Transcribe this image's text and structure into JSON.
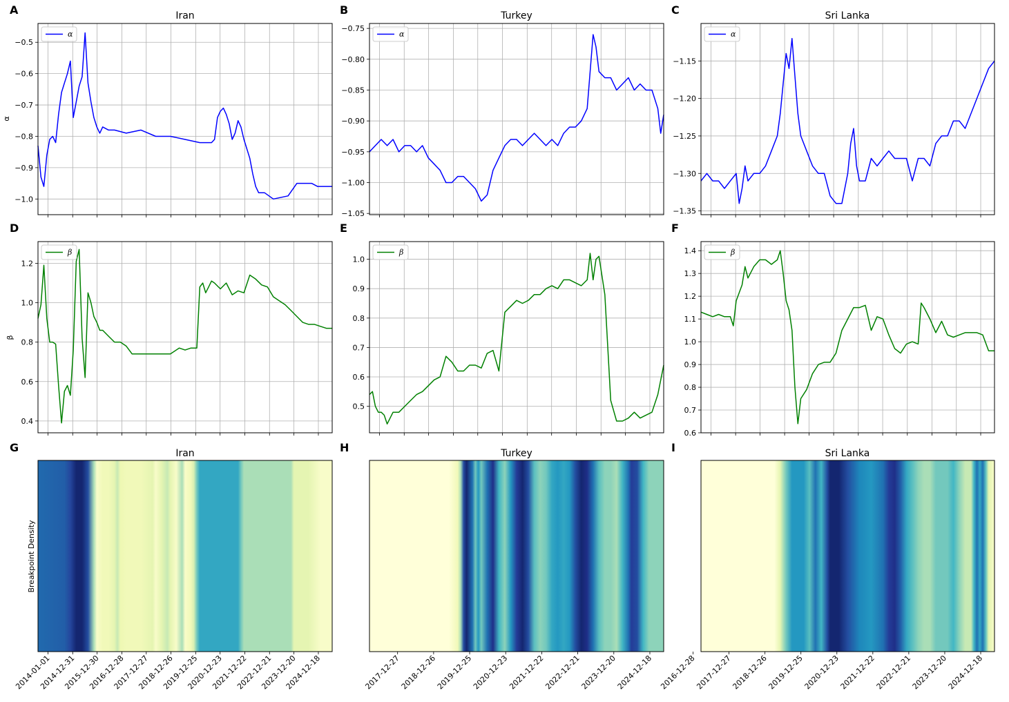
{
  "colors": {
    "alpha": "#0000ff",
    "beta": "#008000",
    "grid": "#b0b0b0",
    "heat": [
      "#ffffd9",
      "#edf8b1",
      "#c7e9b4",
      "#7fcdbb",
      "#41b6c4",
      "#1d91c0",
      "#225ea8",
      "#253494",
      "#081d58"
    ]
  },
  "chart_data": [
    {
      "panel": "A",
      "type": "line",
      "title": "Iran",
      "series_name": "α",
      "ylabel": "α",
      "ylim": [
        -1.05,
        -0.44
      ],
      "yticks": [
        -0.5,
        -0.6,
        -0.7,
        -0.8,
        -0.9,
        -1.0
      ],
      "ytick_labels": [
        "−0.5",
        "−0.6",
        "−0.7",
        "−0.8",
        "−0.9",
        "−1.0"
      ],
      "xlim": [
        0,
        100
      ],
      "x": [
        0,
        1,
        2,
        3,
        4,
        5,
        6,
        7,
        8,
        9,
        10,
        11,
        12,
        13,
        14,
        15,
        16,
        17,
        18,
        19,
        20,
        21,
        22,
        24,
        26,
        30,
        35,
        40,
        45,
        50,
        55,
        58,
        59,
        60,
        61,
        62,
        63,
        64,
        65,
        66,
        67,
        68,
        69,
        70,
        72,
        73,
        74,
        75,
        77,
        80,
        85,
        88,
        90,
        93,
        95,
        100
      ],
      "values": [
        -0.83,
        -0.93,
        -0.96,
        -0.86,
        -0.81,
        -0.8,
        -0.82,
        -0.73,
        -0.66,
        -0.63,
        -0.6,
        -0.56,
        -0.74,
        -0.69,
        -0.64,
        -0.61,
        -0.47,
        -0.63,
        -0.69,
        -0.74,
        -0.77,
        -0.79,
        -0.77,
        -0.78,
        -0.78,
        -0.79,
        -0.78,
        -0.8,
        -0.8,
        -0.81,
        -0.82,
        -0.82,
        -0.82,
        -0.81,
        -0.74,
        -0.72,
        -0.71,
        -0.73,
        -0.76,
        -0.81,
        -0.79,
        -0.75,
        -0.77,
        -0.81,
        -0.87,
        -0.92,
        -0.96,
        -0.98,
        -0.98,
        -1.0,
        -0.99,
        -0.95,
        -0.95,
        -0.95,
        -0.96,
        -0.96
      ]
    },
    {
      "panel": "B",
      "type": "line",
      "title": "Turkey",
      "series_name": "α",
      "ylabel": "",
      "ylim": [
        -1.052,
        -0.742
      ],
      "yticks": [
        -0.75,
        -0.8,
        -0.85,
        -0.9,
        -0.95,
        -1.0,
        -1.05
      ],
      "ytick_labels": [
        "−0.75",
        "−0.80",
        "−0.85",
        "−0.90",
        "−0.95",
        "−1.00",
        "−1.05"
      ],
      "xlim": [
        0,
        100
      ],
      "x": [
        0,
        2,
        4,
        6,
        8,
        10,
        12,
        14,
        16,
        18,
        20,
        22,
        24,
        26,
        28,
        30,
        32,
        34,
        36,
        38,
        40,
        42,
        44,
        46,
        48,
        50,
        52,
        54,
        56,
        58,
        60,
        62,
        64,
        66,
        68,
        70,
        72,
        74,
        75,
        76,
        77,
        78,
        80,
        82,
        84,
        86,
        88,
        90,
        92,
        94,
        96,
        98,
        99,
        100
      ],
      "values": [
        -0.95,
        -0.94,
        -0.93,
        -0.94,
        -0.93,
        -0.95,
        -0.94,
        -0.94,
        -0.95,
        -0.94,
        -0.96,
        -0.97,
        -0.98,
        -1.0,
        -1.0,
        -0.99,
        -0.99,
        -1.0,
        -1.01,
        -1.03,
        -1.02,
        -0.98,
        -0.96,
        -0.94,
        -0.93,
        -0.93,
        -0.94,
        -0.93,
        -0.92,
        -0.93,
        -0.94,
        -0.93,
        -0.94,
        -0.92,
        -0.91,
        -0.91,
        -0.9,
        -0.88,
        -0.82,
        -0.76,
        -0.78,
        -0.82,
        -0.83,
        -0.83,
        -0.85,
        -0.84,
        -0.83,
        -0.85,
        -0.84,
        -0.85,
        -0.85,
        -0.88,
        -0.92,
        -0.89
      ]
    },
    {
      "panel": "C",
      "type": "line",
      "title": "Sri Lanka",
      "series_name": "α",
      "ylabel": "",
      "ylim": [
        -1.355,
        -1.1
      ],
      "yticks": [
        -1.15,
        -1.2,
        -1.25,
        -1.3,
        -1.35
      ],
      "ytick_labels": [
        "−1.15",
        "−1.20",
        "−1.25",
        "−1.30",
        "−1.35"
      ],
      "xlim": [
        0,
        100
      ],
      "x": [
        0,
        2,
        4,
        6,
        8,
        10,
        12,
        13,
        14,
        15,
        16,
        18,
        20,
        22,
        24,
        26,
        27,
        28,
        29,
        30,
        31,
        32,
        33,
        34,
        36,
        38,
        40,
        42,
        44,
        46,
        48,
        50,
        51,
        52,
        53,
        54,
        56,
        58,
        60,
        62,
        64,
        66,
        68,
        70,
        72,
        74,
        76,
        78,
        80,
        82,
        84,
        86,
        88,
        90,
        92,
        94,
        96,
        98,
        100
      ],
      "values": [
        -1.31,
        -1.3,
        -1.31,
        -1.31,
        -1.32,
        -1.31,
        -1.3,
        -1.34,
        -1.32,
        -1.29,
        -1.31,
        -1.3,
        -1.3,
        -1.29,
        -1.27,
        -1.25,
        -1.22,
        -1.18,
        -1.14,
        -1.16,
        -1.12,
        -1.17,
        -1.22,
        -1.25,
        -1.27,
        -1.29,
        -1.3,
        -1.3,
        -1.33,
        -1.34,
        -1.34,
        -1.3,
        -1.26,
        -1.24,
        -1.29,
        -1.31,
        -1.31,
        -1.28,
        -1.29,
        -1.28,
        -1.27,
        -1.28,
        -1.28,
        -1.28,
        -1.31,
        -1.28,
        -1.28,
        -1.29,
        -1.26,
        -1.25,
        -1.25,
        -1.23,
        -1.23,
        -1.24,
        -1.22,
        -1.2,
        -1.18,
        -1.16,
        -1.15
      ]
    },
    {
      "panel": "D",
      "type": "line",
      "title": "",
      "series_name": "β",
      "ylabel": "β",
      "ylim": [
        0.34,
        1.31
      ],
      "yticks": [
        0.4,
        0.6,
        0.8,
        1.0,
        1.2
      ],
      "ytick_labels": [
        "0.4",
        "0.6",
        "0.8",
        "1.0",
        "1.2"
      ],
      "xlim": [
        0,
        100
      ],
      "x": [
        0,
        1,
        2,
        3,
        4,
        5,
        6,
        7,
        8,
        9,
        10,
        11,
        12,
        13,
        14,
        15,
        16,
        17,
        18,
        19,
        20,
        21,
        22,
        24,
        26,
        28,
        30,
        32,
        35,
        38,
        40,
        42,
        45,
        48,
        50,
        52,
        54,
        55,
        56,
        57,
        58,
        59,
        60,
        62,
        64,
        66,
        68,
        70,
        72,
        74,
        76,
        78,
        80,
        82,
        84,
        86,
        88,
        90,
        92,
        94,
        96,
        98,
        100
      ],
      "values": [
        0.92,
        0.99,
        1.19,
        0.92,
        0.8,
        0.8,
        0.79,
        0.58,
        0.39,
        0.55,
        0.58,
        0.53,
        0.76,
        1.21,
        1.27,
        0.82,
        0.62,
        1.05,
        1.0,
        0.93,
        0.9,
        0.86,
        0.86,
        0.83,
        0.8,
        0.8,
        0.78,
        0.74,
        0.74,
        0.74,
        0.74,
        0.74,
        0.74,
        0.77,
        0.76,
        0.77,
        0.77,
        1.08,
        1.1,
        1.05,
        1.08,
        1.11,
        1.1,
        1.07,
        1.1,
        1.04,
        1.06,
        1.05,
        1.14,
        1.12,
        1.09,
        1.08,
        1.03,
        1.01,
        0.99,
        0.96,
        0.93,
        0.9,
        0.89,
        0.89,
        0.88,
        0.87,
        0.87
      ]
    },
    {
      "panel": "E",
      "type": "line",
      "title": "",
      "series_name": "β",
      "ylabel": "",
      "ylim": [
        0.41,
        1.06
      ],
      "yticks": [
        0.5,
        0.6,
        0.7,
        0.8,
        0.9,
        1.0
      ],
      "ytick_labels": [
        "0.5",
        "0.6",
        "0.7",
        "0.8",
        "0.9",
        "1.0"
      ],
      "xlim": [
        0,
        100
      ],
      "x": [
        0,
        1,
        2,
        3,
        4,
        5,
        6,
        8,
        10,
        12,
        14,
        16,
        18,
        20,
        22,
        24,
        26,
        28,
        30,
        32,
        34,
        36,
        38,
        40,
        42,
        44,
        46,
        48,
        50,
        52,
        54,
        56,
        58,
        60,
        62,
        64,
        66,
        68,
        70,
        72,
        74,
        75,
        76,
        77,
        78,
        80,
        82,
        84,
        86,
        88,
        90,
        92,
        94,
        96,
        98,
        100
      ],
      "values": [
        0.54,
        0.55,
        0.5,
        0.48,
        0.48,
        0.47,
        0.44,
        0.48,
        0.48,
        0.5,
        0.52,
        0.54,
        0.55,
        0.57,
        0.59,
        0.6,
        0.67,
        0.65,
        0.62,
        0.62,
        0.64,
        0.64,
        0.63,
        0.68,
        0.69,
        0.62,
        0.82,
        0.84,
        0.86,
        0.85,
        0.86,
        0.88,
        0.88,
        0.9,
        0.91,
        0.9,
        0.93,
        0.93,
        0.92,
        0.91,
        0.93,
        1.02,
        0.93,
        1.0,
        1.01,
        0.88,
        0.52,
        0.45,
        0.45,
        0.46,
        0.48,
        0.46,
        0.47,
        0.48,
        0.54,
        0.64
      ]
    },
    {
      "panel": "F",
      "type": "line",
      "title": "",
      "series_name": "β",
      "ylabel": "",
      "ylim": [
        0.6,
        1.44
      ],
      "yticks": [
        0.6,
        0.7,
        0.8,
        0.9,
        1.0,
        1.1,
        1.2,
        1.3,
        1.4
      ],
      "ytick_labels": [
        "0.6",
        "0.7",
        "0.8",
        "0.9",
        "1.0",
        "1.1",
        "1.2",
        "1.3",
        "1.4"
      ],
      "xlim": [
        0,
        100
      ],
      "x": [
        0,
        2,
        4,
        6,
        8,
        10,
        11,
        12,
        14,
        15,
        16,
        18,
        20,
        22,
        24,
        26,
        27,
        28,
        29,
        30,
        31,
        32,
        33,
        34,
        36,
        38,
        40,
        42,
        44,
        46,
        48,
        50,
        52,
        54,
        56,
        58,
        60,
        62,
        64,
        66,
        68,
        70,
        72,
        74,
        75,
        76,
        78,
        80,
        82,
        84,
        86,
        88,
        90,
        92,
        94,
        96,
        98,
        100
      ],
      "values": [
        1.13,
        1.12,
        1.11,
        1.12,
        1.11,
        1.11,
        1.07,
        1.18,
        1.25,
        1.33,
        1.28,
        1.33,
        1.36,
        1.36,
        1.34,
        1.36,
        1.4,
        1.3,
        1.18,
        1.14,
        1.05,
        0.8,
        0.64,
        0.75,
        0.79,
        0.86,
        0.9,
        0.91,
        0.91,
        0.95,
        1.05,
        1.1,
        1.15,
        1.15,
        1.16,
        1.05,
        1.11,
        1.1,
        1.03,
        0.97,
        0.95,
        0.99,
        1.0,
        0.99,
        1.17,
        1.15,
        1.1,
        1.04,
        1.09,
        1.03,
        1.02,
        1.03,
        1.04,
        1.04,
        1.04,
        1.03,
        0.96,
        0.96
      ]
    },
    {
      "panel": "G",
      "type": "heatmap",
      "title": "Iran",
      "ylabel": "Breakpoint Density",
      "xtick_labels": [
        "2014-01-01",
        "2014-12-31",
        "2015-12-30",
        "2016-12-28",
        "2017-12-27",
        "2018-12-26",
        "2019-12-25",
        "2020-12-23",
        "2021-12-22",
        "2022-12-21",
        "2023-12-20",
        "2024-12-18"
      ],
      "density": [
        [
          0,
          0.72
        ],
        [
          9,
          0.75
        ],
        [
          11,
          0.82
        ],
        [
          13,
          0.95
        ],
        [
          15,
          0.95
        ],
        [
          17,
          0.8
        ],
        [
          19,
          0.3
        ],
        [
          20,
          0.05
        ],
        [
          22,
          0.1
        ],
        [
          24,
          0.1
        ],
        [
          26,
          0.15
        ],
        [
          27,
          0.25
        ],
        [
          28,
          0.12
        ],
        [
          30,
          0.1
        ],
        [
          35,
          0.1
        ],
        [
          39,
          0.15
        ],
        [
          40,
          0.05
        ],
        [
          42,
          0.15
        ],
        [
          44,
          0.25
        ],
        [
          45,
          0.15
        ],
        [
          47,
          0.05
        ],
        [
          49,
          0.3
        ],
        [
          50,
          0.05
        ],
        [
          52,
          0.1
        ],
        [
          53,
          0.2
        ],
        [
          54,
          0.4
        ],
        [
          55,
          0.55
        ],
        [
          60,
          0.55
        ],
        [
          68,
          0.55
        ],
        [
          69,
          0.4
        ],
        [
          70,
          0.3
        ],
        [
          86,
          0.3
        ],
        [
          87,
          0.15
        ],
        [
          92,
          0.15
        ],
        [
          96,
          0.05
        ],
        [
          100,
          0.05
        ]
      ]
    },
    {
      "panel": "H",
      "type": "heatmap",
      "title": "Turkey",
      "ylabel": "",
      "xtick_labels": [
        "2017-12-27",
        "2018-12-26",
        "2019-12-25",
        "2020-12-23",
        "2021-12-22",
        "2022-12-21",
        "2023-12-20",
        "2024-12-18"
      ],
      "density": [
        [
          0,
          0.0
        ],
        [
          27,
          0.0
        ],
        [
          30,
          0.1
        ],
        [
          31,
          0.3
        ],
        [
          32,
          0.8
        ],
        [
          33,
          0.95
        ],
        [
          35,
          0.7
        ],
        [
          36,
          0.4
        ],
        [
          37,
          0.6
        ],
        [
          38,
          0.4
        ],
        [
          40,
          0.7
        ],
        [
          42,
          0.9
        ],
        [
          44,
          0.5
        ],
        [
          46,
          0.35
        ],
        [
          48,
          0.6
        ],
        [
          50,
          0.85
        ],
        [
          52,
          0.95
        ],
        [
          54,
          0.8
        ],
        [
          56,
          0.45
        ],
        [
          58,
          0.35
        ],
        [
          60,
          0.4
        ],
        [
          62,
          0.55
        ],
        [
          64,
          0.6
        ],
        [
          66,
          0.55
        ],
        [
          68,
          0.6
        ],
        [
          70,
          0.8
        ],
        [
          72,
          0.95
        ],
        [
          74,
          0.9
        ],
        [
          76,
          0.7
        ],
        [
          78,
          0.45
        ],
        [
          80,
          0.35
        ],
        [
          82,
          0.35
        ],
        [
          84,
          0.3
        ],
        [
          86,
          0.5
        ],
        [
          88,
          0.7
        ],
        [
          89,
          0.85
        ],
        [
          91,
          0.8
        ],
        [
          93,
          0.5
        ],
        [
          95,
          0.35
        ],
        [
          100,
          0.35
        ]
      ]
    },
    {
      "panel": "I",
      "type": "heatmap",
      "title": "Sri Lanka",
      "ylabel": "",
      "xtick_labels": [
        "2016-12-28",
        "2017-12-27",
        "2018-12-26",
        "2019-12-25",
        "2020-12-23",
        "2021-12-22",
        "2022-12-21",
        "2023-12-20",
        "2024-12-18"
      ],
      "density": [
        [
          0,
          0.0
        ],
        [
          25,
          0.0
        ],
        [
          27,
          0.15
        ],
        [
          29,
          0.4
        ],
        [
          31,
          0.6
        ],
        [
          35,
          0.6
        ],
        [
          37,
          0.45
        ],
        [
          39,
          0.7
        ],
        [
          41,
          0.5
        ],
        [
          43,
          0.8
        ],
        [
          44,
          0.95
        ],
        [
          47,
          0.95
        ],
        [
          50,
          0.8
        ],
        [
          54,
          0.65
        ],
        [
          58,
          0.6
        ],
        [
          62,
          0.7
        ],
        [
          64,
          0.85
        ],
        [
          66,
          0.9
        ],
        [
          68,
          0.75
        ],
        [
          70,
          0.55
        ],
        [
          72,
          0.45
        ],
        [
          74,
          0.35
        ],
        [
          76,
          0.3
        ],
        [
          78,
          0.3
        ],
        [
          80,
          0.4
        ],
        [
          84,
          0.4
        ],
        [
          86,
          0.5
        ],
        [
          88,
          0.35
        ],
        [
          90,
          0.25
        ],
        [
          92,
          0.25
        ],
        [
          93,
          0.5
        ],
        [
          94,
          0.7
        ],
        [
          95,
          0.55
        ],
        [
          96,
          0.7
        ],
        [
          97,
          0.45
        ],
        [
          98,
          0.15
        ],
        [
          100,
          0.05
        ]
      ]
    }
  ]
}
